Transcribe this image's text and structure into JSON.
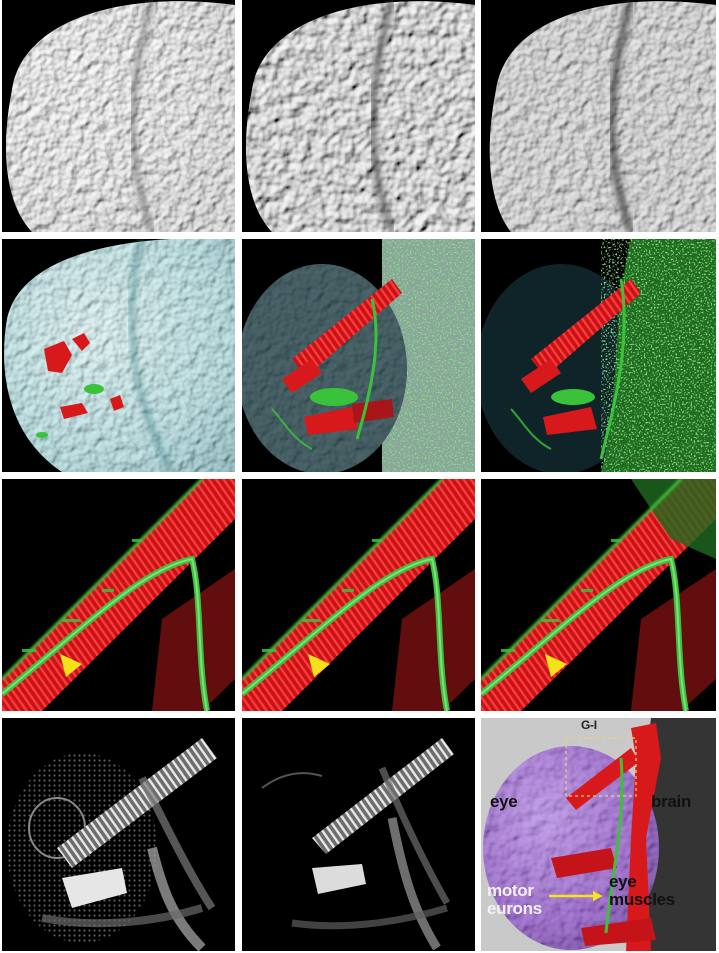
{
  "grid": {
    "rows": 4,
    "cols": 3
  },
  "colors": {
    "background": "#ffffff",
    "muscle_red": "#d8191c",
    "neuron_green": "#3bc23b",
    "nuclei_cyan": "#7fc7cc",
    "eye_purple": "#8a4fc4",
    "arrowhead_yellow": "#f2e21a",
    "arrow_yellow": "#f5e31c"
  },
  "panel_labels": {
    "eye": "eye",
    "brain": "brain",
    "motor_line1": "motor",
    "motor_line2": "eurons",
    "eye_muscles_line1": "eye",
    "eye_muscles_line2": "muscles",
    "corner_marker": "G-I"
  },
  "icons": {
    "arrowhead": "yellow-arrowhead-icon",
    "arrow": "yellow-arrow-icon"
  }
}
